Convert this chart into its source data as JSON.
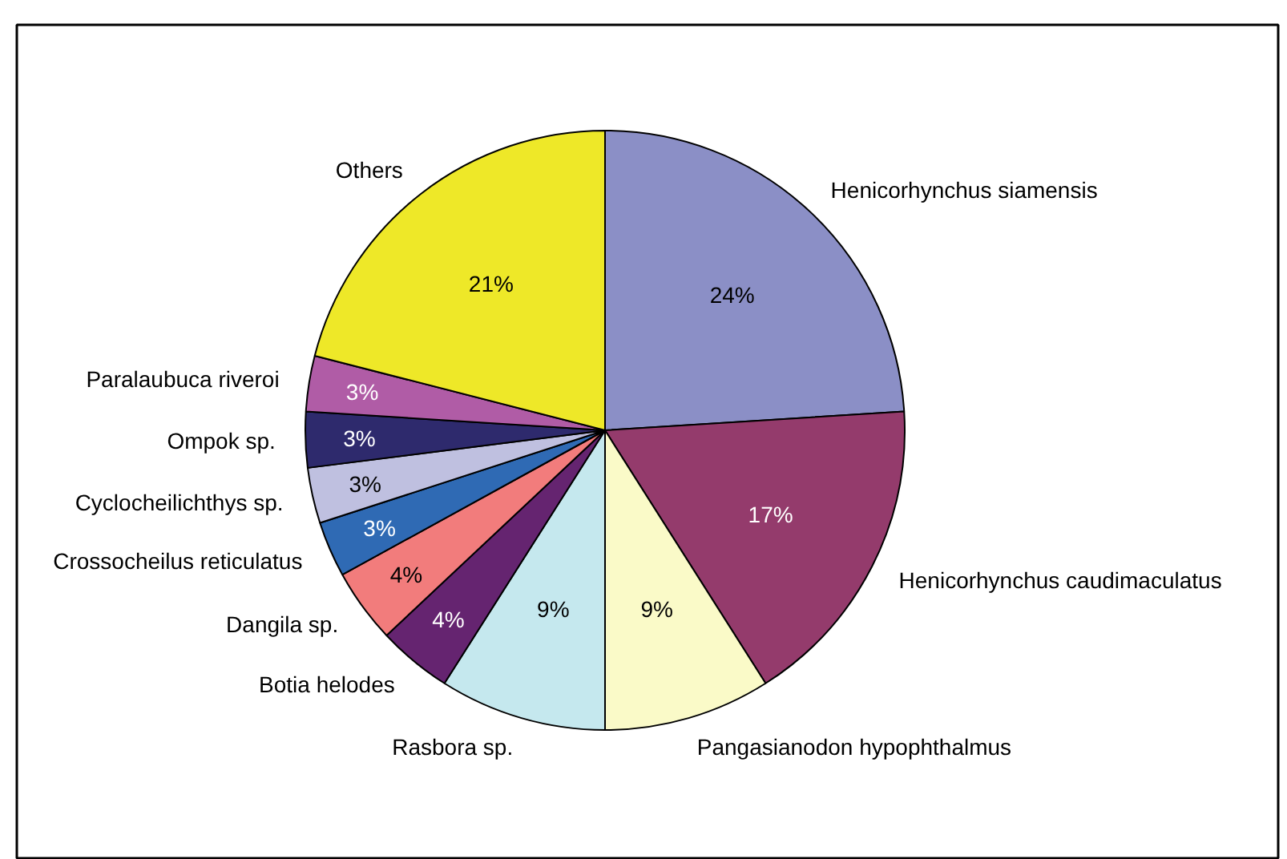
{
  "chart_data": {
    "type": "pie",
    "categories": [
      "Henicorhynchus siamensis",
      "Henicorhynchus caudimaculatus",
      "Pangasianodon hypophthalmus",
      "Rasbora sp.",
      "Botia helodes",
      "Dangila sp.",
      "Crossocheilus reticulatus",
      "Cyclocheilichthys sp.",
      "Ompok sp.",
      "Paralaubuca riveroi",
      "Others"
    ],
    "values": [
      24,
      17,
      9,
      9,
      4,
      4,
      3,
      3,
      3,
      3,
      21
    ],
    "colors": [
      "#8b8fc6",
      "#943b6c",
      "#fafac8",
      "#c5e8ee",
      "#652470",
      "#f27c7c",
      "#2f6ab4",
      "#bfc0e0",
      "#2e2a6d",
      "#b05ca6",
      "#eee828"
    ],
    "value_labels": [
      "24%",
      "17%",
      "9%",
      "9%",
      "4%",
      "4%",
      "3%",
      "3%",
      "3%",
      "3%",
      "21%"
    ]
  }
}
